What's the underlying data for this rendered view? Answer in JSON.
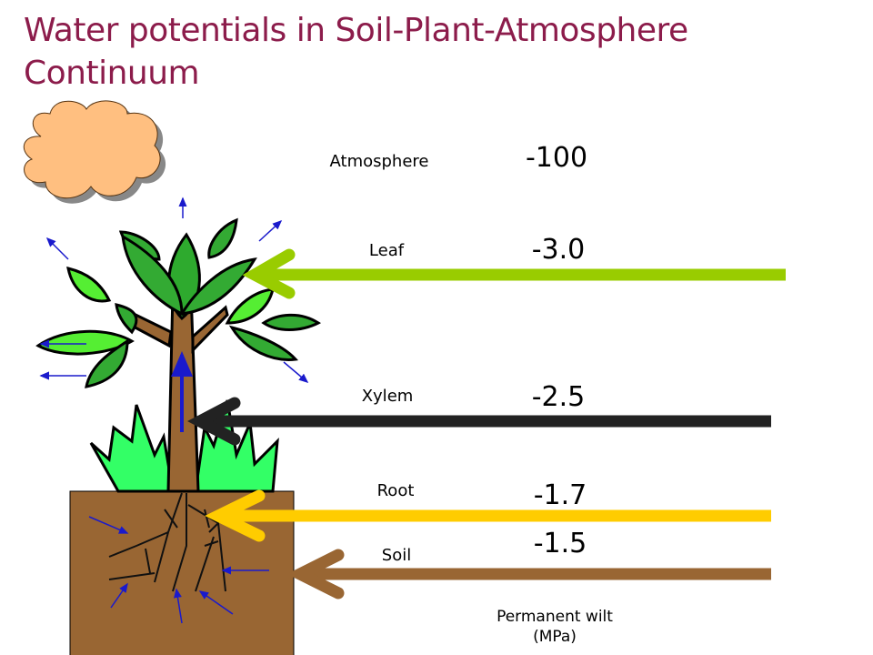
{
  "title": "Water potentials in Soil-Plant-Atmosphere Continuum",
  "levels": [
    {
      "label": "Atmosphere",
      "value": "-100"
    },
    {
      "label": "Leaf",
      "value": "-3.0"
    },
    {
      "label": "Xylem",
      "value": "-2.5"
    },
    {
      "label": "Root",
      "value": "-1.7"
    },
    {
      "label": "Soil",
      "value": "-1.5"
    }
  ],
  "footnote": {
    "line1": "Permanent wilt",
    "line2": "(MPa)"
  },
  "colors": {
    "title": "#8c1c4b",
    "leaf_arrow": "#99cc00",
    "xylem_arrow": "#222222",
    "root_arrow": "#ffcc00",
    "soil_arrow": "#996633",
    "soil": "#996633",
    "cloud": "#ffbf80",
    "water_flow": "#1a1acc"
  }
}
